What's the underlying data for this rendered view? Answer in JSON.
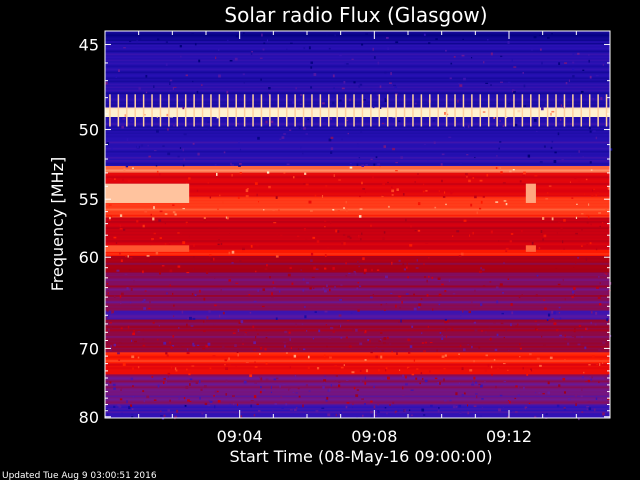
{
  "chart_data": {
    "type": "heatmap",
    "title": "Solar radio Flux (Glasgow)",
    "xlabel": "Start Time (08-May-16 09:00:00)",
    "ylabel": "Frequency [MHz]",
    "x_ticks": [
      "09:04",
      "09:08",
      "09:12"
    ],
    "x_tick_minutes": [
      4,
      8,
      12
    ],
    "xlim_minutes": [
      0,
      15.0
    ],
    "y_ticks": [
      45,
      50,
      55,
      60,
      70,
      80
    ],
    "ylim": [
      44.3,
      80.2
    ],
    "y_scale": "reciprocal",
    "grid": false,
    "colormap": [
      "#00007a",
      "#2a12b8",
      "#6a1a9a",
      "#a00018",
      "#d80010",
      "#ff1a00",
      "#ff6a40",
      "#fff3d0"
    ],
    "bands": [
      {
        "f_from": 44.3,
        "f_to": 45.0,
        "level": 0.05
      },
      {
        "f_from": 45.0,
        "f_to": 48.6,
        "level": 0.12
      },
      {
        "f_from": 48.6,
        "f_to": 49.2,
        "level": 1.0
      },
      {
        "f_from": 49.2,
        "f_to": 52.5,
        "level": 0.13
      },
      {
        "f_from": 52.5,
        "f_to": 53.0,
        "level": 0.85
      },
      {
        "f_from": 53.0,
        "f_to": 54.8,
        "level": 0.6
      },
      {
        "f_from": 54.8,
        "f_to": 56.5,
        "level": 0.78
      },
      {
        "f_from": 56.5,
        "f_to": 59.3,
        "level": 0.55
      },
      {
        "f_from": 59.3,
        "f_to": 59.9,
        "level": 0.7
      },
      {
        "f_from": 59.9,
        "f_to": 61.5,
        "level": 0.45
      },
      {
        "f_from": 61.5,
        "f_to": 65.5,
        "level": 0.35
      },
      {
        "f_from": 65.5,
        "f_to": 66.5,
        "level": 0.2
      },
      {
        "f_from": 66.5,
        "f_to": 70.5,
        "level": 0.38
      },
      {
        "f_from": 70.5,
        "f_to": 72.0,
        "level": 0.72
      },
      {
        "f_from": 72.0,
        "f_to": 73.5,
        "level": 0.65
      },
      {
        "f_from": 73.5,
        "f_to": 78.0,
        "level": 0.32
      },
      {
        "f_from": 78.0,
        "f_to": 80.2,
        "level": 0.15
      }
    ],
    "features": [
      {
        "name": "early-enhancement",
        "t_from": 0.0,
        "t_to": 2.5,
        "f_from": 53.8,
        "f_to": 55.3,
        "level": 0.95
      },
      {
        "name": "early-line-60MHz",
        "t_from": 0.0,
        "t_to": 2.5,
        "f_from": 58.9,
        "f_to": 59.5,
        "level": 0.82
      },
      {
        "name": "late-enhancement",
        "t_from": 12.5,
        "t_to": 12.8,
        "f_from": 53.8,
        "f_to": 55.3,
        "level": 0.92
      },
      {
        "name": "late-line-60MHz",
        "t_from": 12.5,
        "t_to": 12.8,
        "f_from": 58.9,
        "f_to": 59.5,
        "level": 0.85
      }
    ]
  },
  "footer": {
    "updated": "Updated Tue Aug  9 03:00:51 2016"
  }
}
